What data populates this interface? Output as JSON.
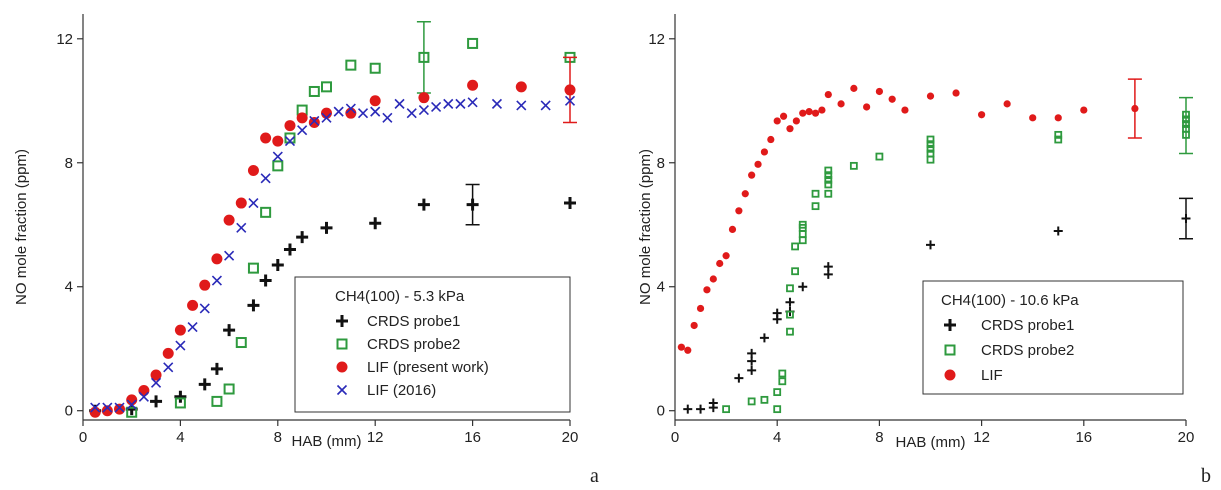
{
  "colors": {
    "probe1": "#111111",
    "probe2": "#2e9a3e",
    "lif": "#e01a1a",
    "lif2016": "#2a2ab8"
  },
  "chart_data": [
    {
      "type": "scatter",
      "panel_letter": "a",
      "xlabel": "HAB (mm)",
      "ylabel": "NO mole fraction (ppm)",
      "xlim": [
        0,
        20
      ],
      "ylim": [
        -0.3,
        12.8
      ],
      "xticks": [
        "0",
        "4",
        "8",
        "12",
        "16",
        "20"
      ],
      "yticks": [
        "0",
        "4",
        "8",
        "12"
      ],
      "legend_title": "CH4(100) - 5.3 kPa",
      "series": [
        {
          "name": "CRDS probe1",
          "marker": "plus",
          "color": "#111111",
          "x": [
            0.5,
            2,
            3,
            4,
            5,
            5.5,
            6,
            7,
            7.5,
            8,
            8.5,
            9,
            10,
            12,
            14,
            16,
            20
          ],
          "y": [
            0.0,
            0.05,
            0.3,
            0.45,
            0.85,
            1.35,
            2.6,
            3.4,
            4.2,
            4.7,
            5.2,
            5.6,
            5.9,
            6.05,
            6.65,
            6.65,
            6.7
          ],
          "errorbars": [
            {
              "x": 16,
              "y": 6.65,
              "err": 0.65
            }
          ]
        },
        {
          "name": "CRDS probe2",
          "marker": "square",
          "color": "#2e9a3e",
          "x": [
            2,
            4,
            5.5,
            6,
            6.5,
            7,
            7.5,
            8,
            8.5,
            9,
            9.5,
            10,
            11,
            12,
            14,
            16,
            20
          ],
          "y": [
            -0.05,
            0.25,
            0.3,
            0.7,
            2.2,
            4.6,
            6.4,
            7.9,
            8.8,
            9.7,
            10.3,
            10.45,
            11.15,
            11.05,
            11.4,
            11.85,
            11.4
          ],
          "errorbars": [
            {
              "x": 14,
              "y": 11.4,
              "err": 1.15
            }
          ]
        },
        {
          "name": "LIF (present work)",
          "marker": "circle",
          "color": "#e01a1a",
          "x": [
            0.5,
            1,
            1.5,
            2,
            2.5,
            3,
            3.5,
            4,
            4.5,
            5,
            5.5,
            6,
            6.5,
            7,
            7.5,
            8,
            8.5,
            9,
            9.5,
            10,
            11,
            12,
            14,
            16,
            18,
            20
          ],
          "y": [
            -0.05,
            0.0,
            0.05,
            0.35,
            0.65,
            1.15,
            1.85,
            2.6,
            3.4,
            4.05,
            4.9,
            6.15,
            6.7,
            7.75,
            8.8,
            8.7,
            9.2,
            9.45,
            9.3,
            9.6,
            9.6,
            10.0,
            10.1,
            10.5,
            10.45,
            10.35
          ],
          "errorbars": [
            {
              "x": 20,
              "y": 10.35,
              "err": 1.05
            }
          ]
        },
        {
          "name": "LIF (2016)",
          "marker": "cross",
          "color": "#2a2ab8",
          "x": [
            0.5,
            1,
            1.5,
            2,
            2.5,
            3,
            3.5,
            4,
            4.5,
            5,
            5.5,
            6,
            6.5,
            7,
            7.5,
            8,
            8.5,
            9,
            9.5,
            10,
            10.5,
            11,
            11.5,
            12,
            12.5,
            13,
            13.5,
            14,
            14.5,
            15,
            15.5,
            16,
            17,
            18,
            19,
            20
          ],
          "y": [
            0.1,
            0.1,
            0.1,
            0.2,
            0.45,
            0.9,
            1.4,
            2.1,
            2.7,
            3.3,
            4.2,
            5.0,
            5.9,
            6.7,
            7.5,
            8.2,
            8.7,
            9.05,
            9.35,
            9.45,
            9.65,
            9.75,
            9.6,
            9.65,
            9.45,
            9.9,
            9.6,
            9.7,
            9.8,
            9.9,
            9.9,
            9.95,
            9.9,
            9.85,
            9.85,
            10.0
          ]
        }
      ]
    },
    {
      "type": "scatter",
      "panel_letter": "b",
      "xlabel": "HAB (mm)",
      "ylabel": "NO mole fraction (ppm)",
      "xlim": [
        0,
        20
      ],
      "ylim": [
        -0.3,
        12.8
      ],
      "xticks": [
        "0",
        "4",
        "8",
        "12",
        "16",
        "20"
      ],
      "yticks": [
        "0",
        "4",
        "8",
        "12"
      ],
      "legend_title": "CH4(100) - 10.6 kPa",
      "series": [
        {
          "name": "CRDS probe1",
          "marker": "plus-small",
          "color": "#111111",
          "x": [
            0.5,
            1,
            1.5,
            1.5,
            2.5,
            3,
            3,
            3,
            3.5,
            4,
            4,
            4.5,
            4.5,
            5,
            6,
            6,
            10,
            15,
            20
          ],
          "y": [
            0.05,
            0.05,
            0.1,
            0.25,
            1.05,
            1.3,
            1.6,
            1.85,
            2.35,
            2.95,
            3.15,
            3.2,
            3.5,
            4.0,
            4.4,
            4.65,
            5.35,
            5.8,
            6.2
          ],
          "errorbars": [
            {
              "x": 20,
              "y": 6.2,
              "err": 0.65
            }
          ]
        },
        {
          "name": "CRDS probe2",
          "marker": "square-small",
          "color": "#2e9a3e",
          "x": [
            2,
            3,
            3.5,
            4,
            4,
            4.2,
            4.2,
            4.5,
            4.5,
            4.5,
            4.7,
            4.7,
            5,
            5,
            5,
            5,
            5.5,
            5.5,
            6,
            6,
            6,
            6,
            6,
            7,
            8,
            10,
            10,
            10,
            10,
            10,
            15,
            15,
            20,
            20,
            20,
            20,
            20
          ],
          "y": [
            0.05,
            0.3,
            0.35,
            0.05,
            0.6,
            0.95,
            1.2,
            2.55,
            3.1,
            3.95,
            4.5,
            5.3,
            5.5,
            5.7,
            5.9,
            6.0,
            6.6,
            7.0,
            7.0,
            7.3,
            7.45,
            7.6,
            7.75,
            7.9,
            8.2,
            8.1,
            8.3,
            8.45,
            8.6,
            8.75,
            8.75,
            8.9,
            8.9,
            9.1,
            9.25,
            9.4,
            9.55
          ],
          "errorbars": [
            {
              "x": 20,
              "y": 9.2,
              "err": 0.9
            }
          ]
        },
        {
          "name": "LIF",
          "marker": "circle-small",
          "color": "#e01a1a",
          "x": [
            0.25,
            0.5,
            0.75,
            1,
            1.25,
            1.5,
            1.75,
            2,
            2.25,
            2.5,
            2.75,
            3,
            3.25,
            3.5,
            3.75,
            4,
            4.25,
            4.5,
            4.75,
            5,
            5.25,
            5.5,
            5.75,
            6,
            6.5,
            7,
            7.5,
            8,
            8.5,
            9,
            10,
            11,
            12,
            13,
            14,
            15,
            16,
            18
          ],
          "y": [
            2.05,
            1.95,
            2.75,
            3.3,
            3.9,
            4.25,
            4.75,
            5.0,
            5.85,
            6.45,
            7.0,
            7.6,
            7.95,
            8.35,
            8.75,
            9.35,
            9.5,
            9.1,
            9.35,
            9.6,
            9.65,
            9.6,
            9.7,
            10.2,
            9.9,
            10.4,
            9.8,
            10.3,
            10.05,
            9.7,
            10.15,
            10.25,
            9.55,
            9.9,
            9.45,
            9.45,
            9.7,
            9.75
          ],
          "errorbars": [
            {
              "x": 18,
              "y": 9.75,
              "err": 0.95
            }
          ]
        }
      ]
    }
  ]
}
